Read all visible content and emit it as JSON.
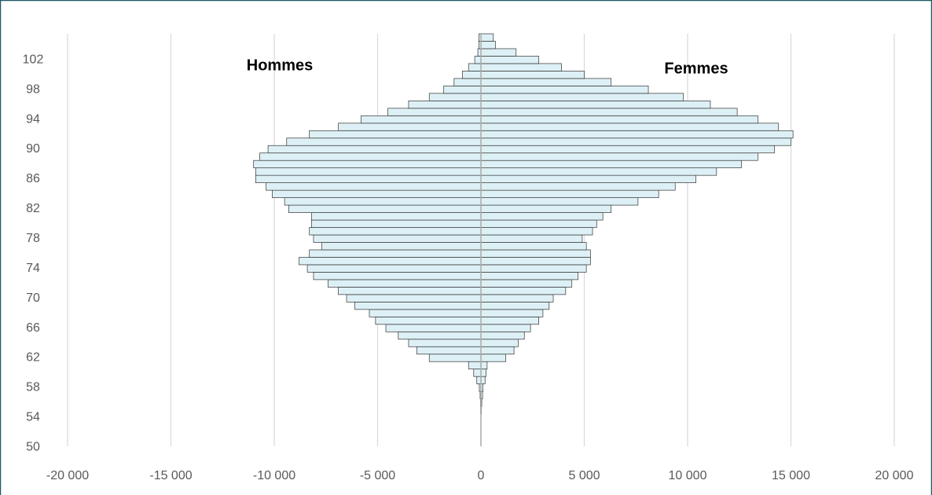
{
  "chart_data": {
    "type": "pyramid",
    "categories": [
      50,
      null,
      null,
      null,
      54,
      null,
      null,
      null,
      58,
      null,
      null,
      null,
      62,
      null,
      null,
      null,
      66,
      null,
      null,
      null,
      70,
      null,
      null,
      null,
      74,
      null,
      null,
      null,
      78,
      null,
      null,
      null,
      82,
      null,
      null,
      null,
      86,
      null,
      null,
      null,
      90,
      null,
      null,
      null,
      94,
      null,
      null,
      null,
      98,
      null,
      null,
      null,
      102,
      null,
      null,
      null
    ],
    "series": [
      {
        "name": "Hommes",
        "color": "#ddf0f5",
        "values": [
          0,
          0,
          0,
          0,
          0,
          -10,
          -20,
          -40,
          -80,
          -200,
          -350,
          -600,
          -2500,
          -3100,
          -3500,
          -4000,
          -4600,
          -5100,
          -5400,
          -6100,
          -6500,
          -6900,
          -7400,
          -8100,
          -8400,
          -8800,
          -8300,
          -7700,
          -8100,
          -8300,
          -8200,
          -8200,
          -9300,
          -9500,
          -10100,
          -10400,
          -10900,
          -10900,
          -11000,
          -10700,
          -10300,
          -9400,
          -8300,
          -6900,
          -5800,
          -4500,
          -3500,
          -2500,
          -1800,
          -1300,
          -900,
          -600,
          -300,
          -150,
          -100,
          -100
        ]
      },
      {
        "name": "Femmes",
        "color": "#ddf0f5",
        "values": [
          0,
          0,
          0,
          0,
          0,
          20,
          40,
          80,
          100,
          200,
          250,
          300,
          1200,
          1600,
          1800,
          2100,
          2400,
          2800,
          3000,
          3300,
          3500,
          4100,
          4400,
          4700,
          5100,
          5300,
          5300,
          5100,
          4900,
          5400,
          5600,
          5900,
          6300,
          7600,
          8600,
          9400,
          10400,
          11400,
          12600,
          13400,
          14200,
          15000,
          15100,
          14400,
          13400,
          12400,
          11100,
          9800,
          8100,
          6300,
          5000,
          3900,
          2800,
          1700,
          700,
          600
        ]
      }
    ],
    "xlim": [
      -20000,
      20000
    ],
    "xticks": [
      {
        "value": -20000,
        "label": "-20 000"
      },
      {
        "value": -15000,
        "label": "-15 000"
      },
      {
        "value": -10000,
        "label": "-10 000"
      },
      {
        "value": -5000,
        "label": "-5 000"
      },
      0,
      {
        "value": 5000,
        "label": "5 000"
      },
      {
        "value": 10000,
        "label": "10 000"
      },
      {
        "value": 15000,
        "label": "15 000"
      },
      {
        "value": 20000,
        "label": "20 000"
      }
    ],
    "grid": true
  }
}
